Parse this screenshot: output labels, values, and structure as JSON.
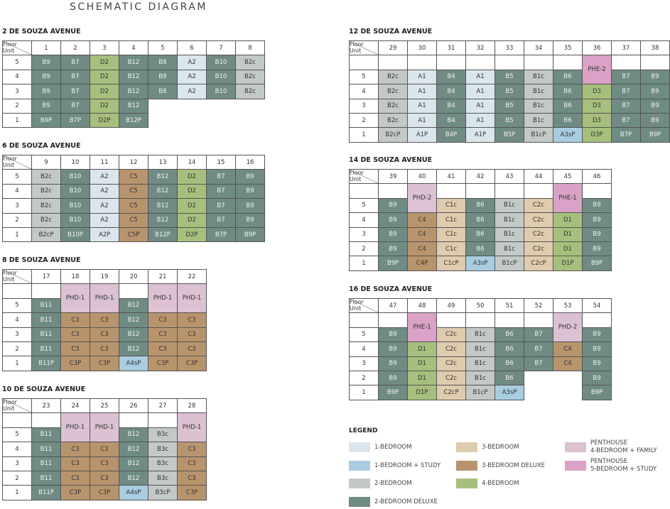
{
  "title": "SCHEMATIC DIAGRAM",
  "blocks": [
    {
      "title": "2 DE SOUZA AVENUE",
      "floor_label": "Floor",
      "unit_label": "Unit",
      "units": [
        1,
        2,
        3,
        4,
        5,
        6,
        7,
        8
      ],
      "floors": [
        5,
        4,
        3,
        2,
        1
      ],
      "rows": [
        [
          "B9",
          "B7",
          "D2",
          "B12",
          "B8",
          "A2",
          "B10",
          "B2c"
        ],
        [
          "B9",
          "B7",
          "D2",
          "B12",
          "B8",
          "A2",
          "B10",
          "B2c"
        ],
        [
          "B9",
          "B7",
          "D2",
          "B12",
          "B8",
          "A2",
          "B10",
          "B2c"
        ],
        [
          "B9",
          "B7",
          "D2",
          "B12",
          null,
          null,
          null,
          null
        ],
        [
          "B9P",
          "B7P",
          "D2P",
          "B12P",
          null,
          null,
          null,
          null
        ]
      ]
    },
    {
      "title": "6 DE SOUZA AVENUE",
      "floor_label": "Floor",
      "unit_label": "Unit",
      "units": [
        9,
        10,
        11,
        12,
        13,
        14,
        15,
        16
      ],
      "floors": [
        5,
        4,
        3,
        2,
        1
      ],
      "rows": [
        [
          "B2c",
          "B10",
          "A2",
          "C5",
          "B12",
          "D2",
          "B7",
          "B9"
        ],
        [
          "B2c",
          "B10",
          "A2",
          "C5",
          "B12",
          "D2",
          "B7",
          "B9"
        ],
        [
          "B2c",
          "B10",
          "A2",
          "C5",
          "B12",
          "D2",
          "B7",
          "B9"
        ],
        [
          "B2c",
          "B10",
          "A2",
          "C5",
          "B12",
          "D2",
          "B7",
          "B9"
        ],
        [
          "B2cP",
          "B10P",
          "A2P",
          "C5P",
          "B12P",
          "D2P",
          "B7P",
          "B9P"
        ]
      ]
    },
    {
      "title": "8 DE SOUZA AVENUE",
      "floor_label": "Floor",
      "unit_label": "Unit",
      "units": [
        17,
        18,
        19,
        20,
        21,
        22
      ],
      "floors": [
        5,
        4,
        3,
        2,
        1
      ],
      "rows": [
        [
          "B11",
          "PHD-1",
          "PHD-1",
          "B12",
          "PHD-1",
          "PHD-1"
        ],
        [
          "B11",
          "C3",
          "C3",
          "B12",
          "C3",
          "C3"
        ],
        [
          "B11",
          "C3",
          "C3",
          "B12",
          "C3",
          "C3"
        ],
        [
          "B11",
          "C3",
          "C3",
          "B12",
          "C3",
          "C3"
        ],
        [
          "B11P",
          "C3P",
          "C3P",
          "A4sP",
          "C3P",
          "C3P"
        ]
      ]
    },
    {
      "title": "10 DE SOUZA AVENUE",
      "floor_label": "Floor",
      "unit_label": "Unit",
      "units": [
        23,
        24,
        25,
        26,
        27,
        28
      ],
      "floors": [
        5,
        4,
        3,
        2,
        1
      ],
      "rows": [
        [
          "B11",
          "PHD-1",
          "PHD-1",
          "B12",
          "B3c",
          "PHD-1"
        ],
        [
          "B11",
          "C3",
          "C3",
          "B12",
          "B3c",
          "C3"
        ],
        [
          "B11",
          "C3",
          "C3",
          "B12",
          "B3c",
          "C3"
        ],
        [
          "B11",
          "C3",
          "C3",
          "B12",
          "B3c",
          "C3"
        ],
        [
          "B11P",
          "C3P",
          "C3P",
          "A4sP",
          "B3cP",
          "C3P"
        ]
      ]
    },
    {
      "title": "12 DE SOUZA AVENUE",
      "floor_label": "Floor",
      "unit_label": "Unit",
      "units": [
        29,
        30,
        31,
        32,
        33,
        34,
        35,
        36,
        37,
        38
      ],
      "floors": [
        5,
        4,
        3,
        2,
        1
      ],
      "rows": [
        [
          "B2c",
          "A1",
          "B4",
          "A1",
          "B5",
          "B1c",
          "B6",
          "PHE-2",
          "B7",
          "B9"
        ],
        [
          "B2c",
          "A1",
          "B4",
          "A1",
          "B5",
          "B1c",
          "B6",
          "D3",
          "B7",
          "B9"
        ],
        [
          "B2c",
          "A1",
          "B4",
          "A1",
          "B5",
          "B1c",
          "B6",
          "D3",
          "B7",
          "B9"
        ],
        [
          "B2c",
          "A1",
          "B4",
          "A1",
          "B5",
          "B1c",
          "B6",
          "D3",
          "B7",
          "B9"
        ],
        [
          "B2cP",
          "A1P",
          "B4P",
          "A1P",
          "B5P",
          "B1cP",
          "A3sP",
          "D3P",
          "B7P",
          "B9P"
        ]
      ]
    },
    {
      "title": "14 DE SOUZA AVENUE",
      "floor_label": "Floor",
      "unit_label": "Unit",
      "units": [
        39,
        40,
        41,
        42,
        43,
        44,
        45,
        46
      ],
      "floors": [
        5,
        4,
        3,
        2,
        1
      ],
      "rows": [
        [
          "B9",
          "PHD-2",
          "C1c",
          "B6",
          "B1c",
          "C2c",
          "PHE-1",
          "B9"
        ],
        [
          "B9",
          "C4",
          "C1c",
          "B6",
          "B1c",
          "C2c",
          "D1",
          "B9"
        ],
        [
          "B9",
          "C4",
          "C1c",
          "B6",
          "B1c",
          "C2c",
          "D1",
          "B9"
        ],
        [
          "B9",
          "C4",
          "C1c",
          "B6",
          "B1c",
          "C2c",
          "D1",
          "B9"
        ],
        [
          "B9P",
          "C4P",
          "C1cP",
          "A3sP",
          "B1cP",
          "C2cP",
          "D1P",
          "B9P"
        ]
      ]
    },
    {
      "title": "16 DE SOUZA AVENUE",
      "floor_label": "Floor",
      "unit_label": "Unit",
      "units": [
        47,
        48,
        49,
        50,
        51,
        52,
        53,
        54
      ],
      "floors": [
        5,
        4,
        3,
        2,
        1
      ],
      "rows": [
        [
          "B9",
          "PHE-1",
          "C2c",
          "B1c",
          "B6",
          "B7",
          "PHD-2",
          "B9"
        ],
        [
          "B9",
          "D1",
          "C2c",
          "B1c",
          "B6",
          "B7",
          "C4",
          "B9"
        ],
        [
          "B9",
          "D1",
          "C2c",
          "B1c",
          "B6",
          "B7",
          "C4",
          "B9"
        ],
        [
          "B9",
          "D1",
          "C2c",
          "B1c",
          "B6",
          null,
          null,
          "B9"
        ],
        [
          "B9P",
          "D1P",
          "C2cP",
          "B1cP",
          "A3sP",
          null,
          null,
          "B9P"
        ]
      ]
    }
  ],
  "legend": {
    "title": "LEGEND",
    "items": [
      [
        "1-BEDROOM"
      ],
      [
        "1-BEDROOM + STUDY"
      ],
      [
        "2-BEDROOM"
      ],
      [
        "2-BEDROOM DELUXE"
      ],
      [
        "3-BEDROOM"
      ],
      [
        "3-BEDROOM DELUXE"
      ],
      [
        "4-BEDROOM"
      ],
      [
        "PENTHOUSE",
        "4-BEDROOM + FAMILY"
      ],
      [
        "PENTHOUSE",
        "5-BEDROOM + STUDY"
      ]
    ]
  }
}
